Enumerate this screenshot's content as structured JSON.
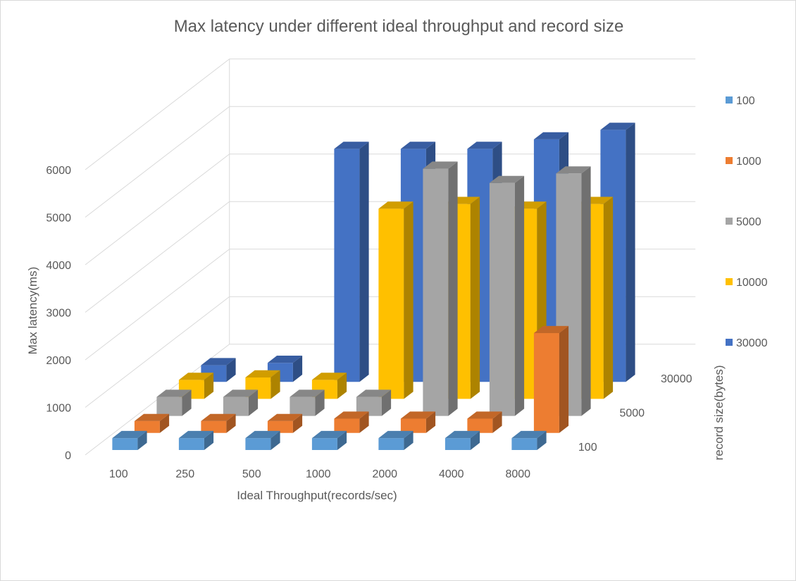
{
  "chart_data": {
    "type": "bar",
    "subtype": "3d-column",
    "title": "Max latency under different ideal throughput and record size",
    "xlabel": "Ideal Throughput(records/sec)",
    "ylabel": "Max latency(ms)",
    "zlabel": "record size(bytes)",
    "categories": [
      "100",
      "250",
      "500",
      "1000",
      "2000",
      "4000",
      "8000"
    ],
    "depth_tick_labels": [
      "100",
      "5000",
      "30000"
    ],
    "y_ticks": [
      "0",
      "1000",
      "2000",
      "3000",
      "4000",
      "5000",
      "6000"
    ],
    "ylim": [
      0,
      6000
    ],
    "grid": true,
    "legend_position": "right",
    "series": [
      {
        "name": "100",
        "color": "#5b9bd5",
        "values": [
          250,
          250,
          250,
          250,
          250,
          250,
          250
        ]
      },
      {
        "name": "1000",
        "color": "#ed7d31",
        "values": [
          250,
          250,
          250,
          300,
          300,
          300,
          2100
        ]
      },
      {
        "name": "5000",
        "color": "#a5a5a5",
        "values": [
          400,
          400,
          400,
          400,
          5200,
          4900,
          5100
        ]
      },
      {
        "name": "10000",
        "color": "#ffc000",
        "values": [
          400,
          450,
          400,
          4000,
          4100,
          4000,
          4100
        ]
      },
      {
        "name": "30000",
        "color": "#4472c4",
        "values": [
          350,
          400,
          4900,
          4900,
          4900,
          5100,
          5300
        ]
      }
    ]
  }
}
